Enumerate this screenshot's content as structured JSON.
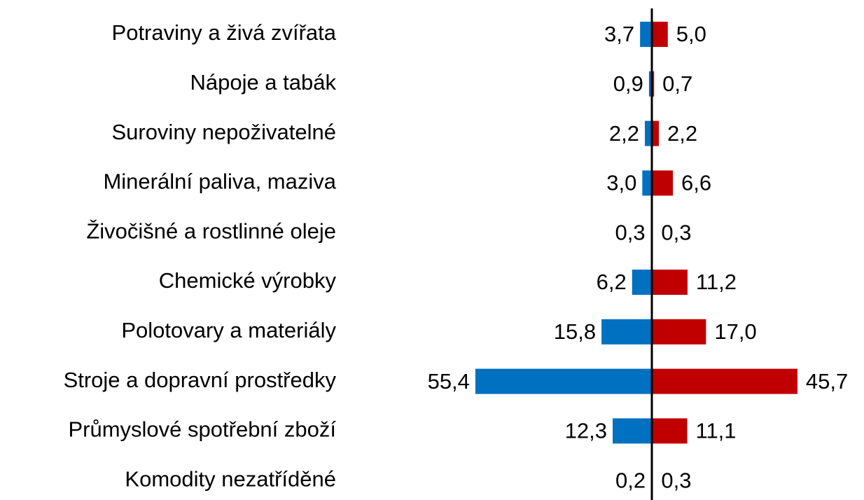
{
  "chart_data": {
    "type": "diverging-bar",
    "categories": [
      "Potraviny a živá zvířata",
      "Nápoje a tabák",
      "Suroviny nepoživatelné",
      "Minerální paliva, maziva",
      "Živočišné a rostlinné oleje",
      "Chemické výrobky",
      "Polotovary a materiály",
      "Stroje a dopravní prostředky",
      "Průmyslové spotřební zboží",
      "Komodity nezatříděné"
    ],
    "xlim": [
      -60,
      60
    ],
    "series": [
      {
        "color": "#0070c0",
        "side": "left",
        "values": [
          3.7,
          0.9,
          2.2,
          3.0,
          0.3,
          6.2,
          15.8,
          55.4,
          12.3,
          0.2
        ],
        "value_labels": [
          "3,7",
          "0,9",
          "2,2",
          "3,0",
          "0,3",
          "6,2",
          "15,8",
          "55,4",
          "12,3",
          "0,2"
        ]
      },
      {
        "color": "#c00000",
        "side": "right",
        "values": [
          5.0,
          0.7,
          2.2,
          6.6,
          0.3,
          11.2,
          17.0,
          45.7,
          11.1,
          0.3
        ],
        "value_labels": [
          "5,0",
          "0,7",
          "2,2",
          "6,6",
          "0,3",
          "11,2",
          "17,0",
          "45,7",
          "11,1",
          "0,3"
        ]
      }
    ]
  }
}
